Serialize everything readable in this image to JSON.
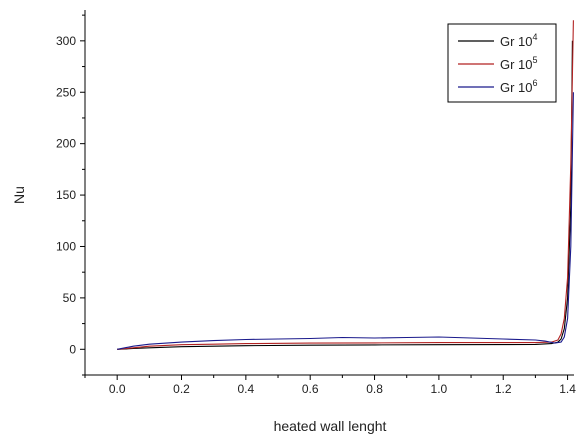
{
  "chart_data": {
    "type": "line",
    "title": "",
    "xlabel": "heated wall lenght",
    "ylabel": "Nu",
    "xlim": [
      -0.1,
      1.42
    ],
    "ylim": [
      -25,
      330
    ],
    "grid": false,
    "legend_position": "top-right",
    "x_ticks": [
      0.0,
      0.2,
      0.4,
      0.6,
      0.8,
      1.0,
      1.2,
      1.4
    ],
    "x_tick_labels": [
      "0.0",
      "0.2",
      "0.4",
      "0.6",
      "0.8",
      "1.0",
      "1.2",
      "1.4"
    ],
    "y_ticks": [
      0,
      50,
      100,
      150,
      200,
      250,
      300
    ],
    "y_tick_labels": [
      "0",
      "50",
      "100",
      "150",
      "200",
      "250",
      "300"
    ],
    "series": [
      {
        "name": "Gr 10",
        "exponent": "4",
        "color": "#000000",
        "x": [
          0.0,
          0.05,
          0.1,
          0.2,
          0.3,
          0.4,
          0.6,
          0.8,
          1.0,
          1.2,
          1.3,
          1.35,
          1.37,
          1.38,
          1.39,
          1.4,
          1.41,
          1.415
        ],
        "y": [
          0,
          0.8,
          1.5,
          2.5,
          3,
          3.5,
          4,
          4.3,
          4.5,
          4.6,
          4.8,
          5.5,
          7,
          10,
          20,
          50,
          140,
          300
        ]
      },
      {
        "name": "Gr 10",
        "exponent": "5",
        "color": "#b22222",
        "x": [
          0.0,
          0.05,
          0.1,
          0.2,
          0.3,
          0.4,
          0.6,
          0.8,
          1.0,
          1.2,
          1.3,
          1.35,
          1.37,
          1.38,
          1.39,
          1.4,
          1.41,
          1.418
        ],
        "y": [
          0,
          1.5,
          3,
          4.5,
          5,
          5.5,
          6,
          6.2,
          6.5,
          6.5,
          6.5,
          7,
          9,
          15,
          30,
          70,
          180,
          320
        ]
      },
      {
        "name": "Gr 10",
        "exponent": "6",
        "color": "#1a1a8c",
        "x": [
          0.0,
          0.05,
          0.1,
          0.2,
          0.3,
          0.4,
          0.5,
          0.6,
          0.7,
          0.8,
          0.9,
          1.0,
          1.1,
          1.2,
          1.3,
          1.33,
          1.36,
          1.38,
          1.39,
          1.4,
          1.41,
          1.418
        ],
        "y": [
          0,
          3,
          5,
          7,
          8.5,
          9.5,
          10,
          10.5,
          11.5,
          11,
          11.5,
          12,
          11,
          10,
          9,
          8,
          6,
          7,
          12,
          30,
          100,
          250
        ]
      }
    ]
  }
}
